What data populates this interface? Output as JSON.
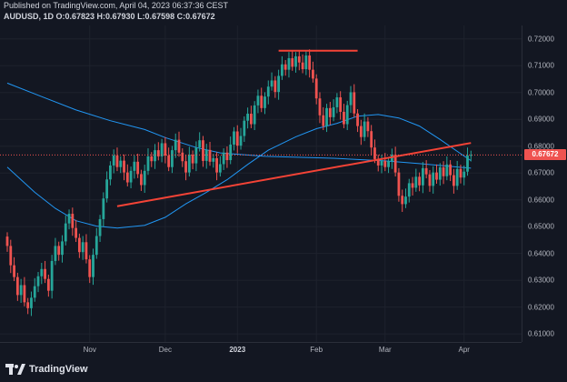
{
  "header": {
    "published": "Published on TradingView.com, April 04, 2023 06:37:36 CEST",
    "symbol_line": "AUDUSD, 1D O:0.67823 H:0.67930 L:0.67598 C:0.67672"
  },
  "price_tag": {
    "label": "0.67672",
    "value": 0.67672,
    "color": "#ef5350"
  },
  "footer": {
    "logo_text": "TradingView"
  },
  "colors": {
    "up": "#26a69a",
    "down": "#ef5350",
    "trend": "#f44336",
    "ma": "#2196f3",
    "bg": "#131722",
    "grid": "#1e222d"
  },
  "y_axis": {
    "ticks": [
      "0.72000",
      "0.71000",
      "0.70000",
      "0.69000",
      "0.68000",
      "0.67000",
      "0.66000",
      "0.65000",
      "0.64000",
      "0.63000",
      "0.62000",
      "0.61000"
    ],
    "tick_values": [
      0.72,
      0.71,
      0.7,
      0.69,
      0.68,
      0.67,
      0.66,
      0.65,
      0.64,
      0.63,
      0.62,
      0.61
    ]
  },
  "x_axis": {
    "ticks": [
      {
        "label": "Nov",
        "bold": false,
        "bar": 24
      },
      {
        "label": "Dec",
        "bold": false,
        "bar": 46
      },
      {
        "label": "2023",
        "bold": true,
        "bar": 67
      },
      {
        "label": "Feb",
        "bold": false,
        "bar": 90
      },
      {
        "label": "Mar",
        "bold": false,
        "bar": 110
      },
      {
        "label": "Apr",
        "bold": false,
        "bar": 133
      }
    ]
  },
  "chart_data": {
    "type": "candlestick",
    "symbol": "AUDUSD",
    "timeframe": "1D",
    "ylim": [
      0.607,
      0.725
    ],
    "bar_count": 136,
    "closes": [
      0.6428,
      0.6356,
      0.6312,
      0.6245,
      0.6282,
      0.6218,
      0.6196,
      0.6235,
      0.6278,
      0.6315,
      0.6342,
      0.6305,
      0.6261,
      0.6372,
      0.6428,
      0.6395,
      0.6445,
      0.6512,
      0.6548,
      0.6495,
      0.6458,
      0.6405,
      0.6442,
      0.6378,
      0.6312,
      0.6395,
      0.6465,
      0.6528,
      0.6605,
      0.6676,
      0.6728,
      0.6765,
      0.6722,
      0.6746,
      0.6702,
      0.6665,
      0.6708,
      0.6742,
      0.6696,
      0.6655,
      0.6708,
      0.6762,
      0.6744,
      0.6785,
      0.6762,
      0.6811,
      0.6765,
      0.6722,
      0.6785,
      0.6824,
      0.6776,
      0.6744,
      0.6702,
      0.6768,
      0.6736,
      0.6795,
      0.6822,
      0.6745,
      0.6786,
      0.6742,
      0.6755,
      0.6702,
      0.6733,
      0.6776,
      0.6748,
      0.6806,
      0.6855,
      0.6802,
      0.6838,
      0.6895,
      0.6921,
      0.6882,
      0.6952,
      0.6988,
      0.6942,
      0.6985,
      0.7022,
      0.7045,
      0.7002,
      0.7062,
      0.7105,
      0.7085,
      0.7128,
      0.7096,
      0.7135,
      0.7112,
      0.7087,
      0.7138,
      0.7085,
      0.7052,
      0.6978,
      0.6915,
      0.6875,
      0.6942,
      0.6908,
      0.6945,
      0.6982,
      0.6928,
      0.6882,
      0.6953,
      0.7001,
      0.6922,
      0.6875,
      0.6834,
      0.6892,
      0.6856,
      0.6795,
      0.6752,
      0.6728,
      0.6745,
      0.6722,
      0.6744,
      0.6768,
      0.6702,
      0.6615,
      0.6584,
      0.6612,
      0.6662,
      0.6645,
      0.6686,
      0.6654,
      0.6718,
      0.6695,
      0.6652,
      0.6702,
      0.6675,
      0.6721,
      0.6688,
      0.6732,
      0.6692,
      0.6652,
      0.6715,
      0.6683,
      0.6705,
      0.6765,
      0.67672
    ],
    "trend_lines": [
      {
        "from": {
          "bar": 32,
          "price": 0.6576
        },
        "to": {
          "bar": 135,
          "price": 0.6812
        }
      },
      {
        "from": {
          "bar": 79,
          "price": 0.7156
        },
        "to": {
          "bar": 102,
          "price": 0.7156
        }
      }
    ],
    "moving_averages": [
      {
        "points": [
          [
            0,
            0.7035
          ],
          [
            10,
            0.6985
          ],
          [
            20,
            0.6935
          ],
          [
            30,
            0.6895
          ],
          [
            40,
            0.6862
          ],
          [
            46,
            0.6832
          ],
          [
            55,
            0.6795
          ],
          [
            62,
            0.6775
          ],
          [
            75,
            0.6762
          ],
          [
            95,
            0.6755
          ],
          [
            110,
            0.6745
          ],
          [
            120,
            0.6735
          ],
          [
            135,
            0.6718
          ]
        ]
      },
      {
        "points": [
          [
            0,
            0.6722
          ],
          [
            8,
            0.6628
          ],
          [
            14,
            0.6568
          ],
          [
            20,
            0.6522
          ],
          [
            26,
            0.6502
          ],
          [
            32,
            0.6495
          ],
          [
            40,
            0.6505
          ],
          [
            46,
            0.6535
          ],
          [
            52,
            0.6585
          ],
          [
            58,
            0.6628
          ],
          [
            64,
            0.6675
          ],
          [
            70,
            0.6732
          ],
          [
            76,
            0.6785
          ],
          [
            84,
            0.6835
          ],
          [
            90,
            0.6865
          ],
          [
            96,
            0.6885
          ],
          [
            102,
            0.6912
          ],
          [
            108,
            0.6918
          ],
          [
            114,
            0.6905
          ],
          [
            120,
            0.6875
          ],
          [
            126,
            0.6825
          ],
          [
            132,
            0.6772
          ],
          [
            135,
            0.6746
          ]
        ]
      }
    ]
  }
}
